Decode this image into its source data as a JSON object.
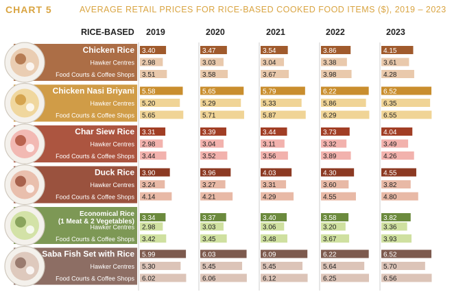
{
  "header": {
    "chart_label": "CHART 5",
    "title": "AVERAGE RETAIL PRICES FOR RICE-BASED COOKED FOOD ITEMS ($), 2019 – 2023"
  },
  "column_headers": {
    "category": "RICE-BASED",
    "years": [
      "2019",
      "2020",
      "2021",
      "2022",
      "2023"
    ]
  },
  "colors": {
    "year_dividers": "#cccccc"
  },
  "chart_data": {
    "type": "bar",
    "title": "AVERAGE RETAIL PRICES FOR RICE-BASED COOKED FOOD ITEMS ($), 2019 – 2023",
    "years": [
      "2019",
      "2020",
      "2021",
      "2022",
      "2023"
    ],
    "sublabels": [
      "Hawker Centres",
      "Food Courts & Coffee Shops"
    ],
    "groups": [
      {
        "name": "Chicken Rice",
        "band_color": "#a05a2c",
        "bar_colors": [
          "#a05a2c",
          "#e9c9ac",
          "#e9c9ac"
        ],
        "overall": [
          3.4,
          3.47,
          3.54,
          3.86,
          4.15
        ],
        "hawker": [
          2.98,
          3.03,
          3.04,
          3.38,
          3.61
        ],
        "food_courts": [
          3.51,
          3.58,
          3.67,
          3.98,
          4.28
        ]
      },
      {
        "name": "Chicken Nasi Briyani",
        "band_color": "#c98e2e",
        "bar_colors": [
          "#c98e2e",
          "#f0d496",
          "#f0d496"
        ],
        "overall": [
          5.58,
          5.65,
          5.79,
          6.22,
          6.52
        ],
        "hawker": [
          5.2,
          5.29,
          5.33,
          5.86,
          6.35
        ],
        "food_courts": [
          5.65,
          5.71,
          5.87,
          6.29,
          6.55
        ]
      },
      {
        "name": "Char Siew Rice",
        "band_color": "#a13e25",
        "bar_colors": [
          "#a13e25",
          "#f2b2ad",
          "#f2b2ad"
        ],
        "overall": [
          3.31,
          3.39,
          3.44,
          3.73,
          4.04
        ],
        "hawker": [
          2.98,
          3.04,
          3.11,
          3.32,
          3.49
        ],
        "food_courts": [
          3.44,
          3.52,
          3.56,
          3.89,
          4.26
        ]
      },
      {
        "name": "Duck Rice",
        "band_color": "#8c3a23",
        "bar_colors": [
          "#8c3a23",
          "#e8b9a6",
          "#e8b9a6"
        ],
        "overall": [
          3.9,
          3.96,
          4.03,
          4.3,
          4.55
        ],
        "hawker": [
          3.24,
          3.27,
          3.31,
          3.6,
          3.82
        ],
        "food_courts": [
          4.14,
          4.21,
          4.29,
          4.55,
          4.8
        ]
      },
      {
        "name": "Economical Rice",
        "name_line2": "(1 Meat & 2 Vegetables)",
        "band_color": "#6b8a3d",
        "bar_colors": [
          "#6b8a3d",
          "#cfe0a0",
          "#cfe0a0"
        ],
        "overall": [
          3.34,
          3.37,
          3.4,
          3.58,
          3.82
        ],
        "hawker": [
          2.98,
          3.03,
          3.06,
          3.2,
          3.36
        ],
        "food_courts": [
          3.42,
          3.45,
          3.48,
          3.67,
          3.93
        ]
      },
      {
        "name": "Saba Fish Set with Rice",
        "band_color": "#7d5a4e",
        "bar_colors": [
          "#7d5a4e",
          "#dcc4b8",
          "#dcc4b8"
        ],
        "overall": [
          5.99,
          6.03,
          6.09,
          6.22,
          6.52
        ],
        "hawker": [
          5.3,
          5.45,
          5.45,
          5.64,
          5.7
        ],
        "food_courts": [
          6.02,
          6.06,
          6.12,
          6.25,
          6.56
        ]
      }
    ]
  }
}
